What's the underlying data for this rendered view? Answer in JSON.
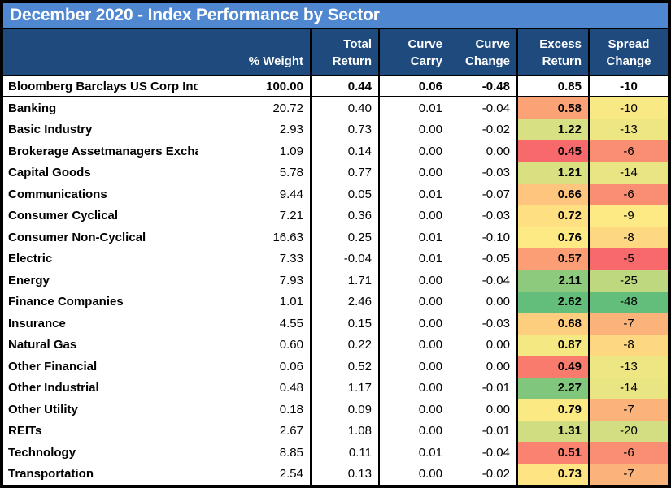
{
  "title_bar": {
    "title": "December 2020 - Index Performance by Sector"
  },
  "header": {
    "weight_label": "% Weight",
    "cols": [
      {
        "l1": "Total",
        "l2": "Return"
      },
      {
        "l1": "Curve",
        "l2": "Carry"
      },
      {
        "l1": "Curve",
        "l2": "Change"
      },
      {
        "l1": "Excess",
        "l2": "Return"
      },
      {
        "l1": "Spread",
        "l2": "Change"
      }
    ]
  },
  "index_row": {
    "name": "Bloomberg Barclays US Corp Index",
    "weight": "100.00",
    "total_return": "0.44",
    "curve_carry": "0.06",
    "curve_change": "-0.48",
    "excess_return": "0.85",
    "spread_change": "-10"
  },
  "rows": [
    {
      "name": "Banking",
      "weight": "20.72",
      "total_return": "0.40",
      "curve_carry": "0.01",
      "curve_change": "-0.04",
      "excess_return": "0.58",
      "spread_change": "-10",
      "excess_bg": "#FBA276",
      "spread_bg": "#F9E984"
    },
    {
      "name": "Basic Industry",
      "weight": "2.93",
      "total_return": "0.73",
      "curve_carry": "0.00",
      "curve_change": "-0.02",
      "excess_return": "1.22",
      "spread_change": "-13",
      "excess_bg": "#D7E082",
      "spread_bg": "#EDE683"
    },
    {
      "name": "Brokerage Assetmanagers Exchanges",
      "weight": "1.09",
      "total_return": "0.14",
      "curve_carry": "0.00",
      "curve_change": "0.00",
      "excess_return": "0.45",
      "spread_change": "-6",
      "excess_bg": "#F8696B",
      "spread_bg": "#FA8E72"
    },
    {
      "name": "Capital Goods",
      "weight": "5.78",
      "total_return": "0.77",
      "curve_carry": "0.00",
      "curve_change": "-0.03",
      "excess_return": "1.21",
      "spread_change": "-14",
      "excess_bg": "#D8E082",
      "spread_bg": "#E9E583"
    },
    {
      "name": "Communications",
      "weight": "9.44",
      "total_return": "0.05",
      "curve_carry": "0.01",
      "curve_change": "-0.07",
      "excess_return": "0.66",
      "spread_change": "-6",
      "excess_bg": "#FDC57D",
      "spread_bg": "#FA8E72"
    },
    {
      "name": "Consumer Cyclical",
      "weight": "7.21",
      "total_return": "0.36",
      "curve_carry": "0.00",
      "curve_change": "-0.03",
      "excess_return": "0.72",
      "spread_change": "-9",
      "excess_bg": "#FEE082",
      "spread_bg": "#FDEA84"
    },
    {
      "name": "Consumer Non-Cyclical",
      "weight": "16.63",
      "total_return": "0.25",
      "curve_carry": "0.01",
      "curve_change": "-0.10",
      "excess_return": "0.76",
      "spread_change": "-8",
      "excess_bg": "#FEEA84",
      "spread_bg": "#FED880"
    },
    {
      "name": "Electric",
      "weight": "7.33",
      "total_return": "-0.04",
      "curve_carry": "0.01",
      "curve_change": "-0.05",
      "excess_return": "0.57",
      "spread_change": "-5",
      "excess_bg": "#FB9E75",
      "spread_bg": "#F8696B"
    },
    {
      "name": "Energy",
      "weight": "7.93",
      "total_return": "1.71",
      "curve_carry": "0.00",
      "curve_change": "-0.04",
      "excess_return": "2.11",
      "spread_change": "-25",
      "excess_bg": "#8DCA7D",
      "spread_bg": "#BED880"
    },
    {
      "name": "Finance Companies",
      "weight": "1.01",
      "total_return": "2.46",
      "curve_carry": "0.00",
      "curve_change": "0.00",
      "excess_return": "2.62",
      "spread_change": "-48",
      "excess_bg": "#63BE7B",
      "spread_bg": "#63BE7B"
    },
    {
      "name": "Insurance",
      "weight": "4.55",
      "total_return": "0.15",
      "curve_carry": "0.00",
      "curve_change": "-0.03",
      "excess_return": "0.68",
      "spread_change": "-7",
      "excess_bg": "#FDCE7E",
      "spread_bg": "#FCB379"
    },
    {
      "name": "Natural Gas",
      "weight": "0.60",
      "total_return": "0.22",
      "curve_carry": "0.00",
      "curve_change": "0.00",
      "excess_return": "0.87",
      "spread_change": "-8",
      "excess_bg": "#F4E883",
      "spread_bg": "#FED880"
    },
    {
      "name": "Other Financial",
      "weight": "0.06",
      "total_return": "0.52",
      "curve_carry": "0.00",
      "curve_change": "0.00",
      "excess_return": "0.49",
      "spread_change": "-13",
      "excess_bg": "#F97B6E",
      "spread_bg": "#EDE683"
    },
    {
      "name": "Other Industrial",
      "weight": "0.48",
      "total_return": "1.17",
      "curve_carry": "0.00",
      "curve_change": "-0.01",
      "excess_return": "2.27",
      "spread_change": "-14",
      "excess_bg": "#80C67C",
      "spread_bg": "#E9E583"
    },
    {
      "name": "Other Utility",
      "weight": "0.18",
      "total_return": "0.09",
      "curve_carry": "0.00",
      "curve_change": "0.00",
      "excess_return": "0.79",
      "spread_change": "-7",
      "excess_bg": "#FBEA84",
      "spread_bg": "#FCB379"
    },
    {
      "name": "REITs",
      "weight": "2.67",
      "total_return": "1.08",
      "curve_carry": "0.00",
      "curve_change": "-0.01",
      "excess_return": "1.31",
      "spread_change": "-20",
      "excess_bg": "#D0DD81",
      "spread_bg": "#D2DE81"
    },
    {
      "name": "Technology",
      "weight": "8.85",
      "total_return": "0.11",
      "curve_carry": "0.01",
      "curve_change": "-0.04",
      "excess_return": "0.51",
      "spread_change": "-6",
      "excess_bg": "#F98370",
      "spread_bg": "#FA8E72"
    },
    {
      "name": "Transportation",
      "weight": "2.54",
      "total_return": "0.13",
      "curve_carry": "0.00",
      "curve_change": "-0.02",
      "excess_return": "0.73",
      "spread_change": "-7",
      "excess_bg": "#FEE483",
      "spread_bg": "#FCB379"
    }
  ],
  "colors": {
    "title_bar_bg": "#5087D1",
    "header_bg": "#1F4A7D",
    "border": "#000000",
    "heat_scale_low_red": "#F8696B",
    "heat_scale_mid_yellow": "#FFEB84",
    "heat_scale_high_green": "#63BE7B"
  },
  "chart_data": {
    "type": "table",
    "title": "December 2020 - Index Performance by Sector",
    "columns": [
      "% Weight",
      "Total Return",
      "Curve Carry",
      "Curve Change",
      "Excess Return",
      "Spread Change"
    ],
    "rows": [
      [
        "Bloomberg Barclays US Corp Index",
        100.0,
        0.44,
        0.06,
        -0.48,
        0.85,
        -10
      ],
      [
        "Banking",
        20.72,
        0.4,
        0.01,
        -0.04,
        0.58,
        -10
      ],
      [
        "Basic Industry",
        2.93,
        0.73,
        0.0,
        -0.02,
        1.22,
        -13
      ],
      [
        "Brokerage Assetmanagers Exchanges",
        1.09,
        0.14,
        0.0,
        0.0,
        0.45,
        -6
      ],
      [
        "Capital Goods",
        5.78,
        0.77,
        0.0,
        -0.03,
        1.21,
        -14
      ],
      [
        "Communications",
        9.44,
        0.05,
        0.01,
        -0.07,
        0.66,
        -6
      ],
      [
        "Consumer Cyclical",
        7.21,
        0.36,
        0.0,
        -0.03,
        0.72,
        -9
      ],
      [
        "Consumer Non-Cyclical",
        16.63,
        0.25,
        0.01,
        -0.1,
        0.76,
        -8
      ],
      [
        "Electric",
        7.33,
        -0.04,
        0.01,
        -0.05,
        0.57,
        -5
      ],
      [
        "Energy",
        7.93,
        1.71,
        0.0,
        -0.04,
        2.11,
        -25
      ],
      [
        "Finance Companies",
        1.01,
        2.46,
        0.0,
        0.0,
        2.62,
        -48
      ],
      [
        "Insurance",
        4.55,
        0.15,
        0.0,
        -0.03,
        0.68,
        -7
      ],
      [
        "Natural Gas",
        0.6,
        0.22,
        0.0,
        0.0,
        0.87,
        -8
      ],
      [
        "Other Financial",
        0.06,
        0.52,
        0.0,
        0.0,
        0.49,
        -13
      ],
      [
        "Other Industrial",
        0.48,
        1.17,
        0.0,
        -0.01,
        2.27,
        -14
      ],
      [
        "Other Utility",
        0.18,
        0.09,
        0.0,
        0.0,
        0.79,
        -7
      ],
      [
        "REITs",
        2.67,
        1.08,
        0.0,
        -0.01,
        1.31,
        -20
      ],
      [
        "Technology",
        8.85,
        0.11,
        0.01,
        -0.04,
        0.51,
        -6
      ],
      [
        "Transportation",
        2.54,
        0.13,
        0.0,
        -0.02,
        0.73,
        -7
      ]
    ],
    "heatmap_columns": [
      "Excess Return",
      "Spread Change"
    ],
    "color_scale": {
      "low": "#F8696B",
      "mid": "#FFEB84",
      "high": "#63BE7B"
    },
    "layout": {
      "grid": "vertical black dividers between column groups",
      "legend": "none"
    }
  }
}
